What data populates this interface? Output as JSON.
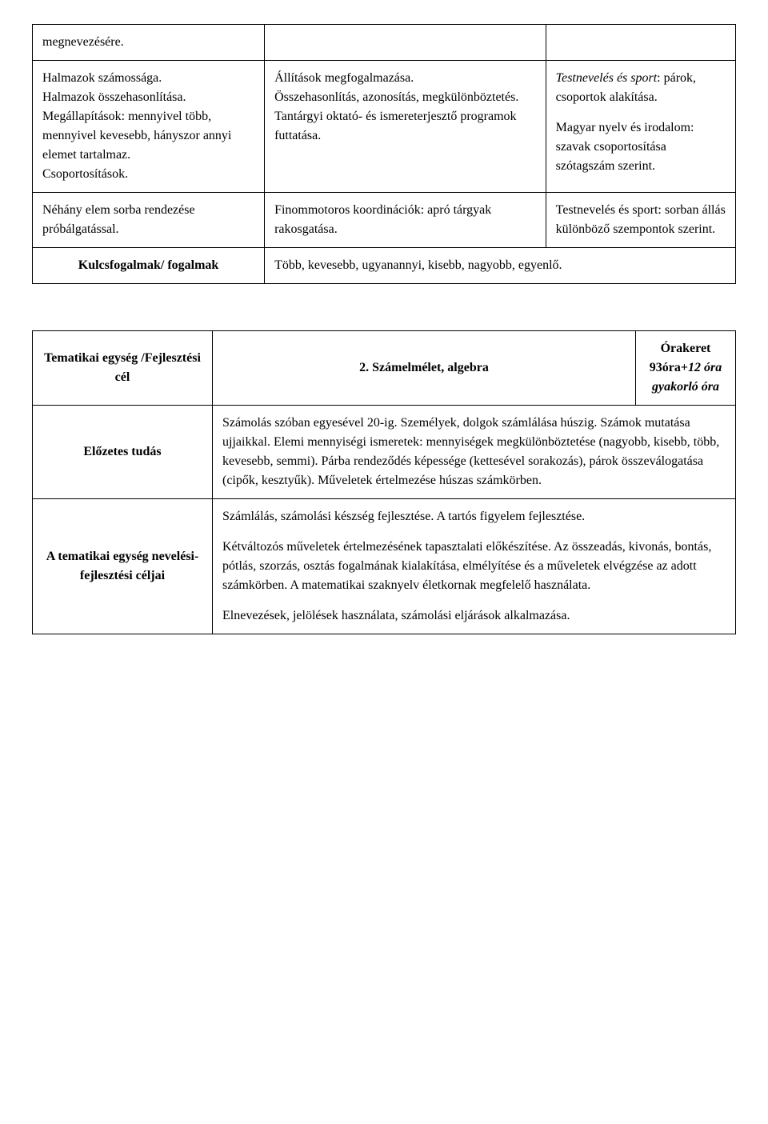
{
  "table1": {
    "row1": {
      "c1": "megnevezésére.",
      "c2": "",
      "c3": ""
    },
    "row2": {
      "c1": "Halmazok számossága.\nHalmazok összehasonlítása.\nMegállapítások: mennyivel több, mennyivel kevesebb, hányszor annyi elemet tartalmaz.\nCsoportosítások.",
      "c2": "Állítások megfogalmazása.\nÖsszehasonlítás, azonosítás, megkülönböztetés.\nTantárgyi oktató- és ismereterjesztő programok futtatása.",
      "c3_a": "Testnevelés és sport",
      "c3_b": ": párok, csoportok alakítása.",
      "c3_c": "Magyar nyelv és irodalom: szavak csoportosítása szótagszám szerint."
    },
    "row3": {
      "c1": "Néhány elem sorba rendezése próbálgatással.",
      "c2": "Finommotoros koordinációk: apró tárgyak rakosgatása.",
      "c3": "Testnevelés és sport: sorban állás különböző szempontok szerint."
    },
    "row4": {
      "label": "Kulcsfogalmak/ fogalmak",
      "content": "Több, kevesebb, ugyanannyi, kisebb, nagyobb, egyenlő."
    }
  },
  "table2": {
    "unit": {
      "label": "Tematikai egység /Fejlesztési cél",
      "title": "2. Számelmélet, algebra",
      "hours_line1": "Órakeret",
      "hours_line2a": "93óra+",
      "hours_line2b": "12 óra gyakorló óra"
    },
    "prior": {
      "label": "Előzetes tudás",
      "content": "Számolás szóban egyesével 20-ig. Személyek, dolgok számlálása húszig. Számok mutatása ujjaikkal. Elemi mennyiségi ismeretek: mennyiségek megkülönböztetése (nagyobb, kisebb, több, kevesebb, semmi). Párba rendeződés képessége (kettesével sorakozás), párok összeválogatása (cipők, kesztyűk). Műveletek értelmezése húszas számkörben."
    },
    "goals": {
      "label": "A tematikai egység nevelési-fejlesztési céljai",
      "p1": "Számlálás, számolási készség fejlesztése. A tartós figyelem fejlesztése.",
      "p2": "Kétváltozós műveletek értelmezésének tapasztalati előkészítése. Az összeadás, kivonás, bontás, pótlás, szorzás, osztás fogalmának kialakítása, elmélyítése és a műveletek elvégzése az adott számkörben. A matematikai szaknyelv életkornak megfelelő használata.",
      "p3": "Elnevezések, jelölések használata, számolási eljárások alkalmazása."
    }
  }
}
